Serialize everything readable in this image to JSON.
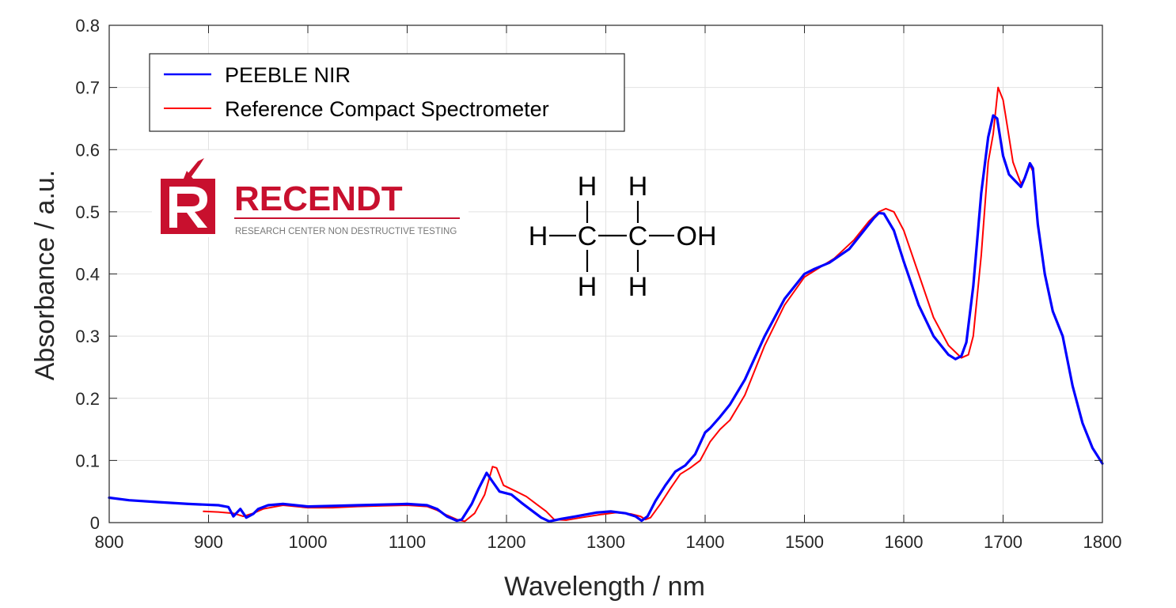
{
  "chart_data": {
    "type": "line",
    "title": "",
    "xlabel": "Wavelength / nm",
    "ylabel": "Absorbance / a.u.",
    "xlim": [
      800,
      1800
    ],
    "ylim": [
      0,
      0.8
    ],
    "xticks": [
      800,
      900,
      1000,
      1100,
      1200,
      1300,
      1400,
      1500,
      1600,
      1700,
      1800
    ],
    "yticks": [
      0,
      0.1,
      0.2,
      0.3,
      0.4,
      0.5,
      0.6,
      0.7,
      0.8
    ],
    "xtick_labels": [
      "800",
      "900",
      "1000",
      "1100",
      "1200",
      "1300",
      "1400",
      "1500",
      "1600",
      "1700",
      "1800"
    ],
    "ytick_labels": [
      "0",
      "0.1",
      "0.2",
      "0.3",
      "0.4",
      "0.5",
      "0.6",
      "0.7",
      "0.8"
    ],
    "grid": true,
    "legend_position": "top-left",
    "series": [
      {
        "name": "PEEBLE NIR",
        "color": "#0000ff",
        "x": [
          800,
          820,
          850,
          880,
          910,
          920,
          925,
          932,
          938,
          945,
          950,
          960,
          975,
          1000,
          1025,
          1050,
          1075,
          1100,
          1120,
          1130,
          1140,
          1150,
          1155,
          1165,
          1172,
          1180,
          1185,
          1193,
          1205,
          1215,
          1225,
          1235,
          1243,
          1255,
          1270,
          1290,
          1305,
          1320,
          1330,
          1336,
          1342,
          1350,
          1360,
          1370,
          1380,
          1390,
          1400,
          1405,
          1415,
          1425,
          1440,
          1460,
          1480,
          1500,
          1510,
          1525,
          1545,
          1560,
          1570,
          1575,
          1580,
          1590,
          1600,
          1615,
          1630,
          1645,
          1652,
          1658,
          1663,
          1670,
          1678,
          1685,
          1690,
          1694,
          1700,
          1706,
          1712,
          1718,
          1722,
          1727,
          1730,
          1735,
          1742,
          1750,
          1760,
          1770,
          1780,
          1790,
          1800
        ],
        "values": [
          0.04,
          0.036,
          0.033,
          0.03,
          0.028,
          0.025,
          0.01,
          0.022,
          0.008,
          0.014,
          0.022,
          0.028,
          0.03,
          0.026,
          0.027,
          0.028,
          0.029,
          0.03,
          0.028,
          0.022,
          0.01,
          0.003,
          0.005,
          0.03,
          0.055,
          0.08,
          0.068,
          0.05,
          0.045,
          0.032,
          0.02,
          0.008,
          0.002,
          0.006,
          0.01,
          0.016,
          0.018,
          0.015,
          0.01,
          0.003,
          0.01,
          0.035,
          0.06,
          0.082,
          0.092,
          0.11,
          0.145,
          0.152,
          0.17,
          0.19,
          0.23,
          0.3,
          0.36,
          0.4,
          0.408,
          0.418,
          0.44,
          0.47,
          0.49,
          0.498,
          0.497,
          0.47,
          0.42,
          0.35,
          0.3,
          0.27,
          0.263,
          0.268,
          0.29,
          0.38,
          0.53,
          0.62,
          0.655,
          0.65,
          0.59,
          0.56,
          0.55,
          0.54,
          0.555,
          0.578,
          0.57,
          0.48,
          0.4,
          0.34,
          0.3,
          0.22,
          0.16,
          0.12,
          0.095
        ]
      },
      {
        "name": "Reference Compact Spectrometer",
        "color": "#ff0000",
        "x": [
          895,
          910,
          925,
          935,
          945,
          955,
          975,
          1000,
          1025,
          1050,
          1075,
          1100,
          1120,
          1130,
          1140,
          1150,
          1158,
          1168,
          1178,
          1186,
          1190,
          1197,
          1210,
          1220,
          1230,
          1240,
          1248,
          1260,
          1275,
          1295,
          1310,
          1325,
          1335,
          1340,
          1345,
          1355,
          1365,
          1375,
          1385,
          1395,
          1405,
          1415,
          1425,
          1440,
          1460,
          1480,
          1500,
          1515,
          1530,
          1550,
          1565,
          1575,
          1582,
          1590,
          1600,
          1615,
          1630,
          1645,
          1658,
          1665,
          1670,
          1678,
          1685,
          1690,
          1695,
          1700,
          1705,
          1710,
          1718,
          1722,
          1727,
          1730,
          1735,
          1742,
          1750,
          1760,
          1770,
          1780,
          1790,
          1800
        ],
        "values": [
          0.018,
          0.017,
          0.015,
          0.01,
          0.015,
          0.022,
          0.028,
          0.024,
          0.024,
          0.026,
          0.027,
          0.028,
          0.026,
          0.02,
          0.012,
          0.005,
          0.002,
          0.015,
          0.045,
          0.09,
          0.088,
          0.06,
          0.05,
          0.042,
          0.03,
          0.018,
          0.005,
          0.004,
          0.008,
          0.013,
          0.016,
          0.014,
          0.01,
          0.005,
          0.008,
          0.03,
          0.055,
          0.078,
          0.088,
          0.1,
          0.13,
          0.15,
          0.165,
          0.205,
          0.285,
          0.35,
          0.395,
          0.41,
          0.425,
          0.455,
          0.485,
          0.5,
          0.505,
          0.5,
          0.47,
          0.4,
          0.33,
          0.285,
          0.265,
          0.27,
          0.3,
          0.43,
          0.58,
          0.625,
          0.7,
          0.68,
          0.63,
          0.58,
          0.545,
          0.555,
          0.575,
          0.565,
          0.48,
          0.4,
          0.34,
          0.3,
          0.22,
          0.16,
          0.12,
          0.095
        ]
      }
    ]
  },
  "logo": {
    "name": "RECENDT",
    "tagline": "RESEARCH CENTER NON DESTRUCTIVE TESTING",
    "brand_color": "#c8102e"
  },
  "molecule": {
    "name": "ethanol",
    "atoms": [
      "H",
      "H",
      "H",
      "C",
      "C",
      "OH",
      "H",
      "H"
    ]
  }
}
